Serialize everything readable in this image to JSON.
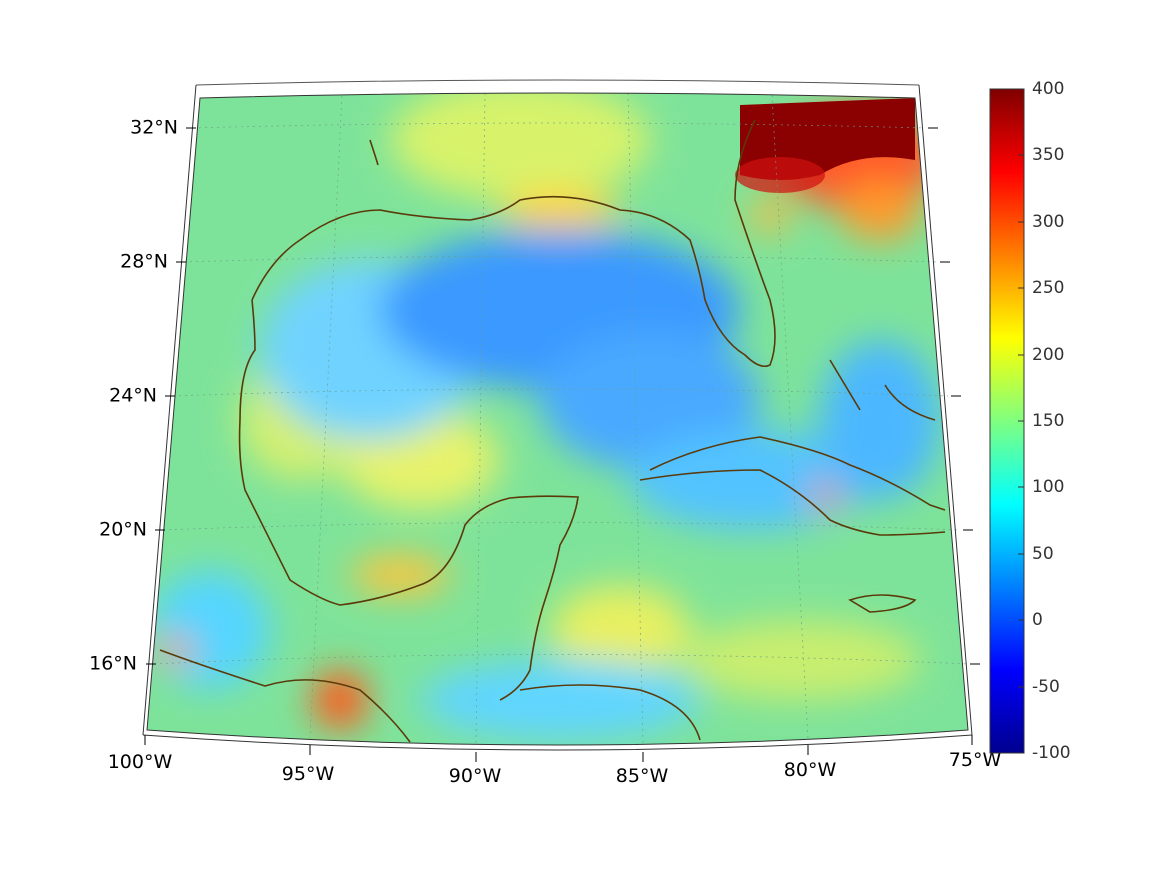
{
  "map": {
    "lon_labels": [
      "100°W",
      "95°W",
      "90°W",
      "85°W",
      "80°W",
      "75°W"
    ],
    "lat_labels": [
      "32°N",
      "28°N",
      "24°N",
      "20°N",
      "16°N"
    ]
  },
  "colorbar": {
    "tick_labels": [
      "400",
      "350",
      "300",
      "250",
      "200",
      "150",
      "100",
      "50",
      "0",
      "-50",
      "-100"
    ],
    "range": [
      -100,
      400
    ],
    "colormap": [
      "#00008f",
      "#0000ff",
      "#00ffff",
      "#ffff00",
      "#ff0000",
      "#800000"
    ]
  },
  "colors": {
    "coastline": "#5a3a0a",
    "field_base": "#7ee39a",
    "ocean_low": "#1e90ff",
    "hot_spot": "#8b0000"
  }
}
